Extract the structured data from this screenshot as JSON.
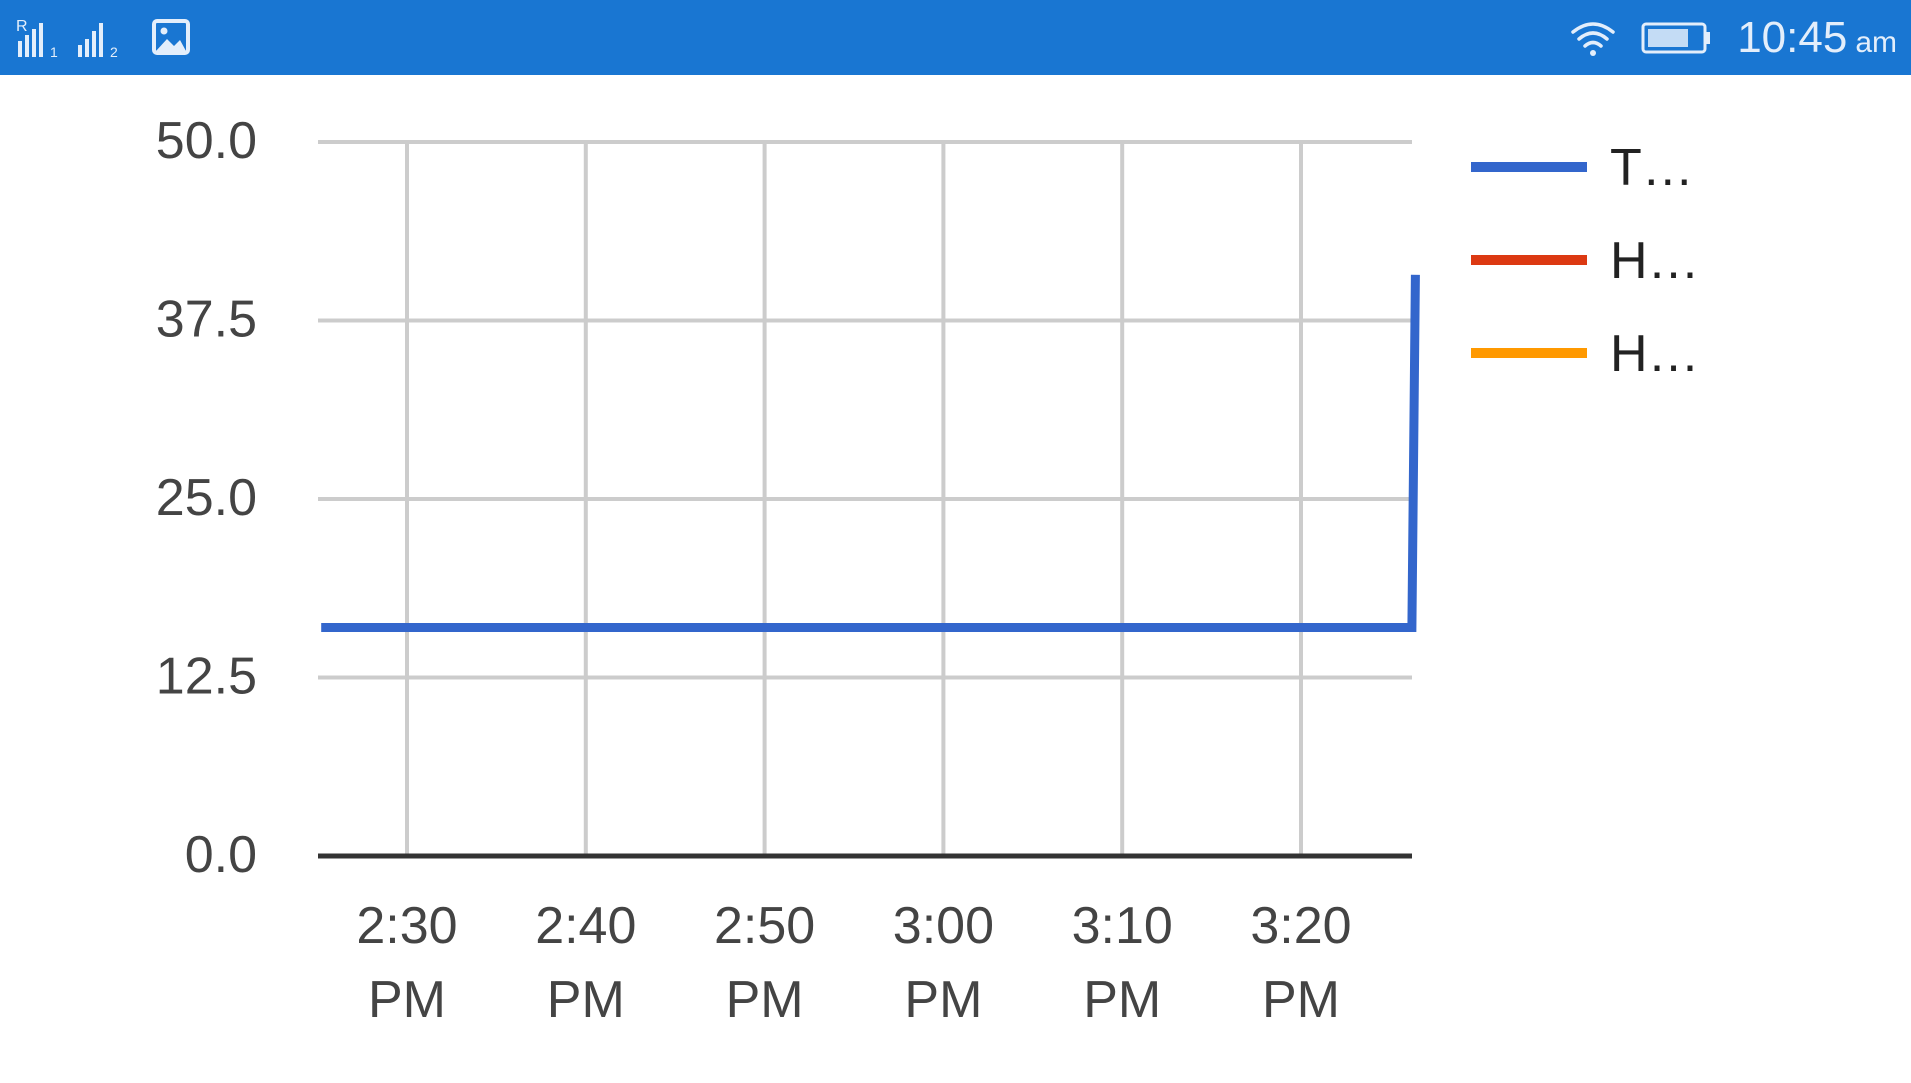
{
  "status_bar": {
    "time": "10:45",
    "ampm": "am",
    "sim1_label": "1",
    "sim2_label": "2",
    "roaming_label": "R",
    "background_color": "#1976d2"
  },
  "chart_data": {
    "type": "line",
    "title": "",
    "xlabel": "",
    "ylabel": "",
    "ylim": [
      0,
      50
    ],
    "y_ticks": [
      "50.0",
      "37.5",
      "25.0",
      "12.5",
      "0.0"
    ],
    "y_tick_values": [
      50,
      37.5,
      25,
      12.5,
      0
    ],
    "xlim_minutes": [
      25,
      63.5
    ],
    "x_ticks": [
      {
        "line1": "2:30",
        "line2": "PM",
        "minute": 30
      },
      {
        "line1": "2:40",
        "line2": "PM",
        "minute": 40
      },
      {
        "line1": "2:50",
        "line2": "PM",
        "minute": 50
      },
      {
        "line1": "3:00",
        "line2": "PM",
        "minute": 60
      },
      {
        "line1": "3:10",
        "line2": "PM",
        "minute": 70
      },
      {
        "line1": "3:20",
        "line2": "PM",
        "minute": 80
      }
    ],
    "grid": true,
    "legend_position": "right",
    "series": [
      {
        "name": "T…",
        "color": "#3366cc",
        "points": [
          {
            "minute": 25.2,
            "y": 16.0
          },
          {
            "minute": 86.2,
            "y": 16.0
          },
          {
            "minute": 86.4,
            "y": 40.7
          }
        ]
      },
      {
        "name": "H…",
        "color": "#dc3912",
        "points": []
      },
      {
        "name": "H…",
        "color": "#ff9900",
        "points": []
      }
    ]
  }
}
